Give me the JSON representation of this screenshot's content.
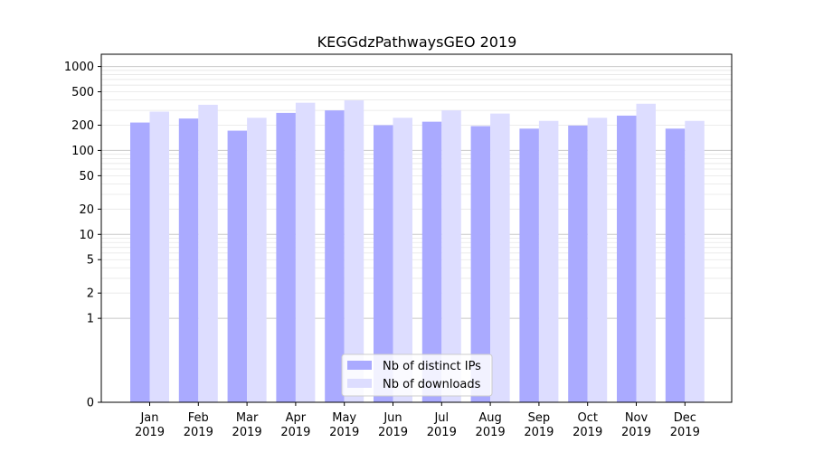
{
  "chart_data": {
    "type": "bar",
    "title": "KEGGdzPathwaysGEO 2019",
    "xlabel": "",
    "ylabel": "",
    "y_scale": "symlog",
    "ylim": [
      0,
      1400
    ],
    "y_ticks": [
      0,
      1,
      2,
      5,
      10,
      20,
      50,
      100,
      200,
      500,
      1000
    ],
    "grid": true,
    "legend_position": "bottom-center",
    "categories": [
      [
        "Jan",
        "2019"
      ],
      [
        "Feb",
        "2019"
      ],
      [
        "Mar",
        "2019"
      ],
      [
        "Apr",
        "2019"
      ],
      [
        "May",
        "2019"
      ],
      [
        "Jun",
        "2019"
      ],
      [
        "Jul",
        "2019"
      ],
      [
        "Aug",
        "2019"
      ],
      [
        "Sep",
        "2019"
      ],
      [
        "Oct",
        "2019"
      ],
      [
        "Nov",
        "2019"
      ],
      [
        "Dec",
        "2019"
      ]
    ],
    "series": [
      {
        "name": "Nb of distinct IPs",
        "color": "#aaaaff",
        "values": [
          215,
          240,
          172,
          280,
          300,
          200,
          220,
          195,
          182,
          198,
          260,
          182
        ]
      },
      {
        "name": "Nb of downloads",
        "color": "#ddddff",
        "values": [
          290,
          350,
          245,
          370,
          395,
          245,
          300,
          275,
          225,
          245,
          360,
          225
        ]
      }
    ]
  }
}
